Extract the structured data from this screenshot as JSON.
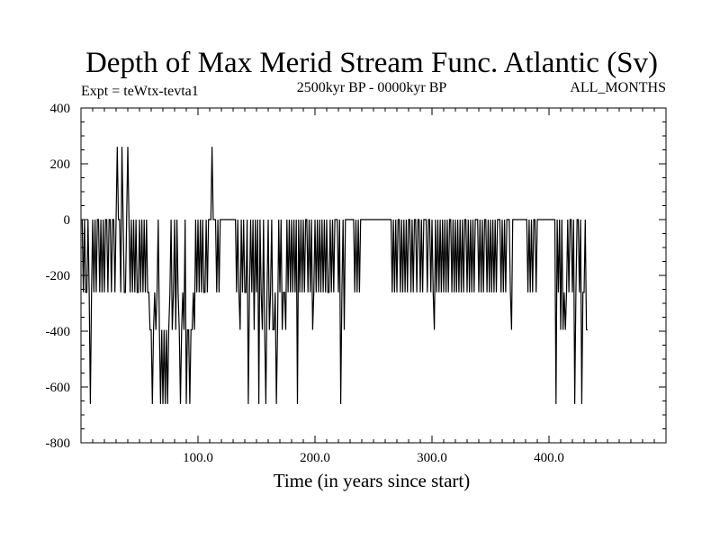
{
  "chart_data": {
    "type": "line",
    "title": "Depth of Max Merid Stream Func. Atlantic (Sv)",
    "subtitle_left": "Expt = teWtx-tevta1",
    "subtitle_center": "2500kyr BP - 0000kyr BP",
    "subtitle_right": "ALL_MONTHS",
    "xlabel": "Time (in years since start)",
    "ylabel": "",
    "xlim": [
      0,
      500
    ],
    "ylim": [
      -800,
      400
    ],
    "x_ticks": [
      100,
      200,
      300,
      400
    ],
    "x_tick_labels": [
      "100.0",
      "200.0",
      "300.0",
      "400.0"
    ],
    "y_ticks": [
      -800,
      -600,
      -400,
      -200,
      0,
      200,
      400
    ],
    "y_tick_labels": [
      "-800",
      "-600",
      "-400",
      "-200",
      "0",
      "200",
      "400"
    ],
    "series": [
      {
        "name": "depth",
        "x_start": 1,
        "x_step": 1,
        "values": [
          0,
          -261,
          0,
          -261,
          -261,
          0,
          -261,
          -661,
          -261,
          0,
          -261,
          0,
          -261,
          0,
          0,
          -261,
          0,
          -261,
          0,
          -261,
          0,
          0,
          -261,
          0,
          0,
          -261,
          0,
          0,
          -261,
          0,
          261,
          0,
          0,
          -261,
          261,
          0,
          -261,
          -261,
          0,
          261,
          0,
          -261,
          0,
          -261,
          0,
          -261,
          0,
          -261,
          -261,
          0,
          -261,
          0,
          -261,
          0,
          -261,
          0,
          -261,
          -261,
          -395,
          -395,
          -661,
          -395,
          -261,
          -395,
          -261,
          0,
          -395,
          -661,
          -395,
          -661,
          -395,
          -661,
          -395,
          -661,
          -395,
          -261,
          0,
          -395,
          -261,
          0,
          -395,
          0,
          -261,
          -395,
          -661,
          -395,
          -261,
          -395,
          0,
          -661,
          -395,
          -395,
          -661,
          -395,
          -395,
          -261,
          -395,
          0,
          -261,
          0,
          -261,
          0,
          -261,
          0,
          -261,
          -261,
          0,
          -261,
          0,
          0,
          0,
          261,
          0,
          0,
          0,
          -261,
          0,
          -261,
          0,
          0,
          0,
          0,
          0,
          0,
          0,
          0,
          0,
          0,
          0,
          0,
          0,
          0,
          -261,
          0,
          -261,
          -395,
          0,
          -261,
          0,
          -261,
          -261,
          0,
          -661,
          -261,
          0,
          -261,
          0,
          -395,
          0,
          -261,
          0,
          -661,
          0,
          -261,
          -395,
          0,
          -395,
          -661,
          -261,
          0,
          -395,
          -261,
          0,
          -395,
          -395,
          -261,
          -661,
          -395,
          0,
          -261,
          0,
          -395,
          -261,
          -261,
          -395,
          0,
          -261,
          0,
          -261,
          0,
          -261,
          0,
          -261,
          0,
          -661,
          0,
          -261,
          0,
          -261,
          0,
          -261,
          0,
          0,
          -261,
          0,
          -261,
          0,
          -395,
          -261,
          0,
          -261,
          0,
          -261,
          0,
          -261,
          0,
          -261,
          0,
          -261,
          0,
          -261,
          -261,
          0,
          -261,
          0,
          -261,
          0,
          0,
          0,
          -261,
          0,
          -661,
          -261,
          0,
          -395,
          0,
          0,
          0,
          0,
          0,
          0,
          0,
          0,
          -261,
          0,
          -261,
          0,
          -261,
          0,
          0,
          0,
          0,
          0,
          0,
          0,
          0,
          0,
          0,
          0,
          0,
          0,
          0,
          0,
          0,
          0,
          0,
          0,
          0,
          0,
          0,
          0,
          0,
          0,
          0,
          0,
          -261,
          0,
          -261,
          0,
          -261,
          0,
          0,
          -261,
          0,
          -261,
          0,
          -261,
          0,
          -261,
          0,
          0,
          -261,
          0,
          -261,
          0,
          0,
          -261,
          0,
          0,
          -261,
          0,
          -261,
          0,
          0,
          0,
          -261,
          0,
          0,
          -261,
          0,
          -261,
          -395,
          0,
          -261,
          0,
          -261,
          0,
          -261,
          0,
          -261,
          0,
          -261,
          0,
          -261,
          0,
          0,
          -261,
          0,
          -261,
          0,
          -261,
          0,
          -261,
          0,
          -261,
          0,
          -261,
          0,
          0,
          -261,
          0,
          -261,
          0,
          -261,
          0,
          -261,
          0,
          0,
          0,
          -261,
          0,
          -261,
          0,
          -261,
          0,
          0,
          -261,
          0,
          -261,
          0,
          -261,
          0,
          -261,
          0,
          -261,
          0,
          0,
          0,
          -261,
          0,
          -261,
          0,
          -261,
          0,
          0,
          0,
          -261,
          -395,
          0,
          0,
          0,
          0,
          0,
          0,
          0,
          0,
          0,
          0,
          0,
          0,
          0,
          -261,
          0,
          -261,
          0,
          -261,
          0,
          0,
          -261,
          0,
          0,
          0,
          0,
          0,
          0,
          0,
          0,
          0,
          0,
          0,
          0,
          0,
          0,
          0,
          0,
          -661,
          0,
          -261,
          0,
          -395,
          0,
          -395,
          -261,
          -395,
          -261,
          0,
          -261,
          0,
          0,
          -261,
          0,
          -661,
          -261,
          0,
          0,
          -261,
          0,
          -661,
          -261,
          -261,
          0,
          -395,
          -395
        ]
      }
    ]
  }
}
